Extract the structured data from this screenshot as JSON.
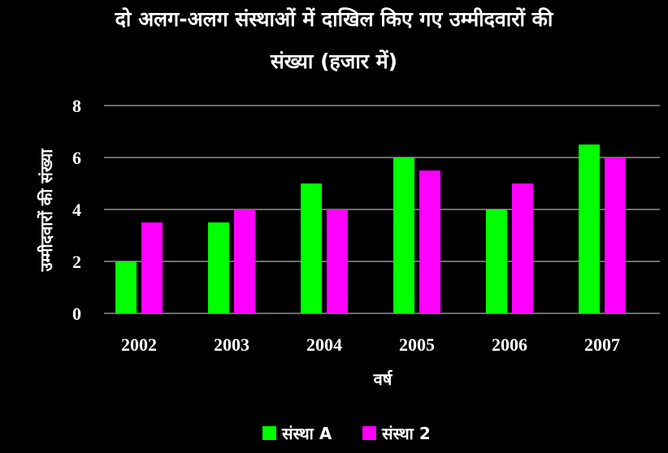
{
  "chart_data": {
    "type": "bar",
    "title_lines": [
      "दो अलग-अलग संस्थाओं में दाखिल किए गए उम्मीदवारों की",
      "संख्या (हजार में)"
    ],
    "xlabel": "वर्ष",
    "ylabel": "उम्मीदवारों की संख्या",
    "categories": [
      "2002",
      "2003",
      "2004",
      "2005",
      "2006",
      "2007"
    ],
    "series": [
      {
        "name": "संस्था A",
        "color": "#00ff00",
        "values": [
          2,
          3.5,
          5,
          6,
          4,
          6.5
        ]
      },
      {
        "name": "संस्था 2",
        "color": "#ff00ff",
        "values": [
          3.5,
          4,
          4,
          5.5,
          5,
          6
        ]
      }
    ],
    "ylim": [
      0,
      8
    ],
    "yticks": [
      0,
      2,
      4,
      6,
      8
    ],
    "grid": true,
    "legend_position": "bottom"
  }
}
